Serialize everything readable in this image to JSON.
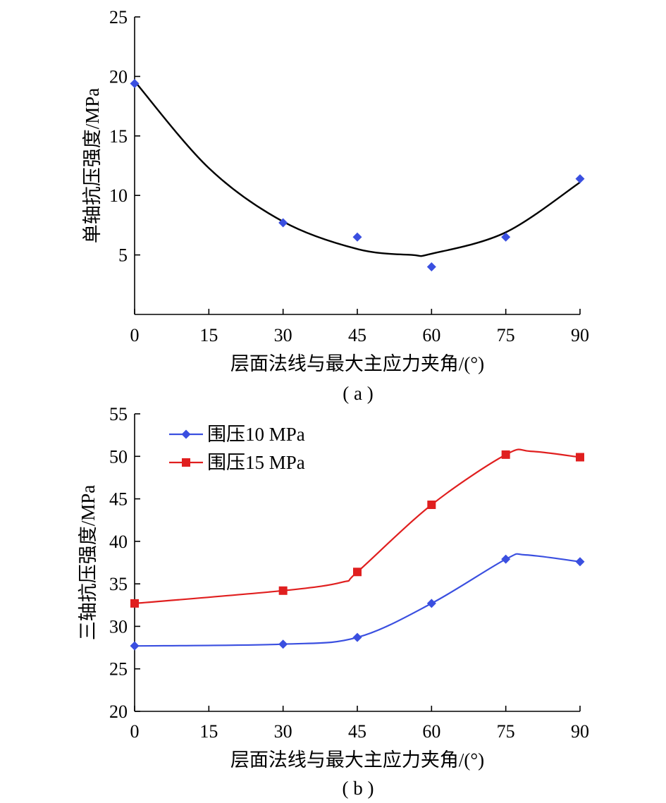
{
  "chart_data": [
    {
      "type": "scatter",
      "panel_label": "( a )",
      "xlabel": "层面法线与最大主应力夹角/(°)",
      "ylabel": "单轴抗压强度/MPa",
      "xlim": [
        0,
        90
      ],
      "ylim": [
        0,
        25
      ],
      "xticks": [
        "0",
        "15",
        "30",
        "45",
        "60",
        "75",
        "90"
      ],
      "yticks": [
        "5",
        "10",
        "15",
        "20",
        "25"
      ],
      "grid": false,
      "legend": "none",
      "series": [
        {
          "marker": "diamond",
          "color": "#3a4fe0",
          "x": [
            0,
            30,
            45,
            60,
            75,
            90
          ],
          "y": [
            19.4,
            7.7,
            6.5,
            4.0,
            6.5,
            11.4
          ]
        }
      ],
      "fit_curve": {
        "color": "#000000",
        "points": [
          [
            0,
            19.6
          ],
          [
            15,
            12.3
          ],
          [
            30,
            7.8
          ],
          [
            45,
            5.5
          ],
          [
            56,
            5.0
          ],
          [
            60,
            5.1
          ],
          [
            75,
            6.9
          ],
          [
            90,
            11.1
          ]
        ]
      }
    },
    {
      "type": "line",
      "panel_label": "( b )",
      "xlabel": "层面法线与最大主应力夹角/(°)",
      "ylabel": "三轴抗压强度/MPa",
      "xlim": [
        0,
        90
      ],
      "ylim": [
        20,
        55
      ],
      "xticks": [
        "0",
        "15",
        "30",
        "45",
        "60",
        "75",
        "90"
      ],
      "yticks": [
        "20",
        "25",
        "30",
        "35",
        "40",
        "45",
        "50",
        "55"
      ],
      "grid": false,
      "legend": "top-left",
      "series": [
        {
          "name": "围压10 MPa",
          "marker": "diamond",
          "color": "#3a4fe0",
          "x": [
            0,
            30,
            45,
            60,
            75,
            90
          ],
          "y": [
            27.7,
            27.9,
            28.7,
            32.7,
            37.9,
            37.6
          ],
          "curve": [
            [
              0,
              27.7
            ],
            [
              30,
              27.9
            ],
            [
              45,
              28.7
            ],
            [
              60,
              32.7
            ],
            [
              75,
              37.9
            ],
            [
              79,
              38.4
            ],
            [
              90,
              37.6
            ]
          ]
        },
        {
          "name": "围压15 MPa",
          "marker": "square",
          "color": "#e01f1f",
          "x": [
            0,
            30,
            45,
            60,
            75,
            90
          ],
          "y": [
            32.7,
            34.2,
            36.4,
            44.3,
            50.2,
            49.9
          ],
          "curve": [
            [
              0,
              32.7
            ],
            [
              30,
              34.2
            ],
            [
              42,
              35.2
            ],
            [
              45,
              36.4
            ],
            [
              60,
              44.3
            ],
            [
              75,
              50.2
            ],
            [
              80,
              50.6
            ],
            [
              90,
              49.9
            ]
          ]
        }
      ]
    }
  ]
}
